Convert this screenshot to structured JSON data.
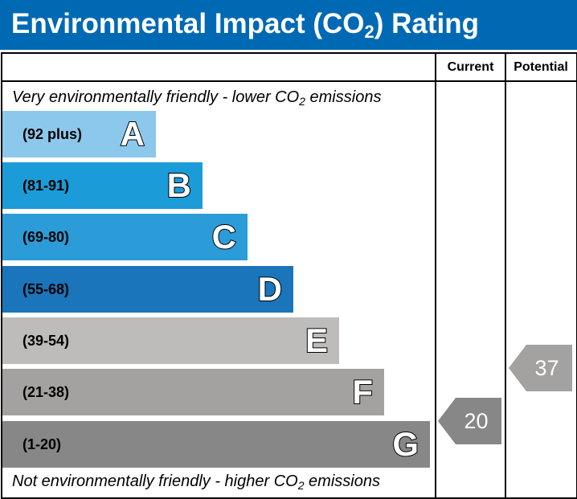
{
  "header": {
    "title_pre": "Environmental Impact (CO",
    "title_sub": "2",
    "title_post": ") Rating"
  },
  "columns": {
    "current": "Current",
    "potential": "Potential"
  },
  "captions": {
    "top_pre": "Very environmentally friendly - lower CO",
    "top_sub": "2",
    "top_post": " emissions",
    "bottom_pre": "Not environmentally friendly - higher CO",
    "bottom_sub": "2",
    "bottom_post": " emissions"
  },
  "bands": [
    {
      "letter": "A",
      "range": "(92 plus)",
      "color": "#8cc8ec"
    },
    {
      "letter": "B",
      "range": "(81-91)",
      "color": "#1b9bd7"
    },
    {
      "letter": "C",
      "range": "(69-80)",
      "color": "#2b9cd8"
    },
    {
      "letter": "D",
      "range": "(55-68)",
      "color": "#1a75bb"
    },
    {
      "letter": "E",
      "range": "(39-54)",
      "color": "#bdbcbb"
    },
    {
      "letter": "F",
      "range": "(21-38)",
      "color": "#a3a2a1"
    },
    {
      "letter": "G",
      "range": "(1-20)",
      "color": "#878787"
    }
  ],
  "ratings": {
    "current": {
      "value": "20",
      "band": "G",
      "color": "#878787"
    },
    "potential": {
      "value": "37",
      "band": "F",
      "color": "#a3a2a1"
    }
  }
}
